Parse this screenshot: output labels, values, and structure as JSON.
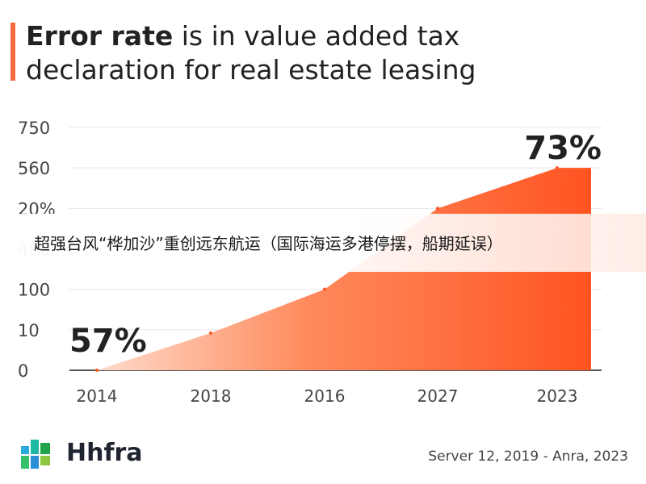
{
  "title": {
    "bold": "Error rate",
    "rest": " is in value added tax declaration for real estate leasing"
  },
  "colors": {
    "accent": "#f26a3d",
    "area_start": "#fde3d6",
    "area_end": "#ff5422",
    "text": "#222222"
  },
  "chart_data": {
    "type": "area",
    "categories": [
      "2014",
      "2018",
      "2016",
      "2027",
      "2023"
    ],
    "y_tick_labels": [
      "0",
      "10",
      "100",
      "400",
      "20%",
      "560",
      "750"
    ],
    "series": [
      {
        "values": [
          0,
          9.2,
          100,
          500,
          560
        ]
      }
    ],
    "annotations": [
      {
        "text": "57%",
        "anchor": "start"
      },
      {
        "text": "73%",
        "anchor": "end"
      }
    ],
    "grid": true,
    "title": "Error rate is in value added tax declaration for real estate leasing"
  },
  "banner": {
    "text": "超强台风“桦加沙”重创远东航运（国际海运多港停摆，船期延误）"
  },
  "footer": {
    "brand": "Hhfra",
    "brand_icon": "grid-logo-icon",
    "source": "Server 12, 2019 - Anra, 2023"
  }
}
